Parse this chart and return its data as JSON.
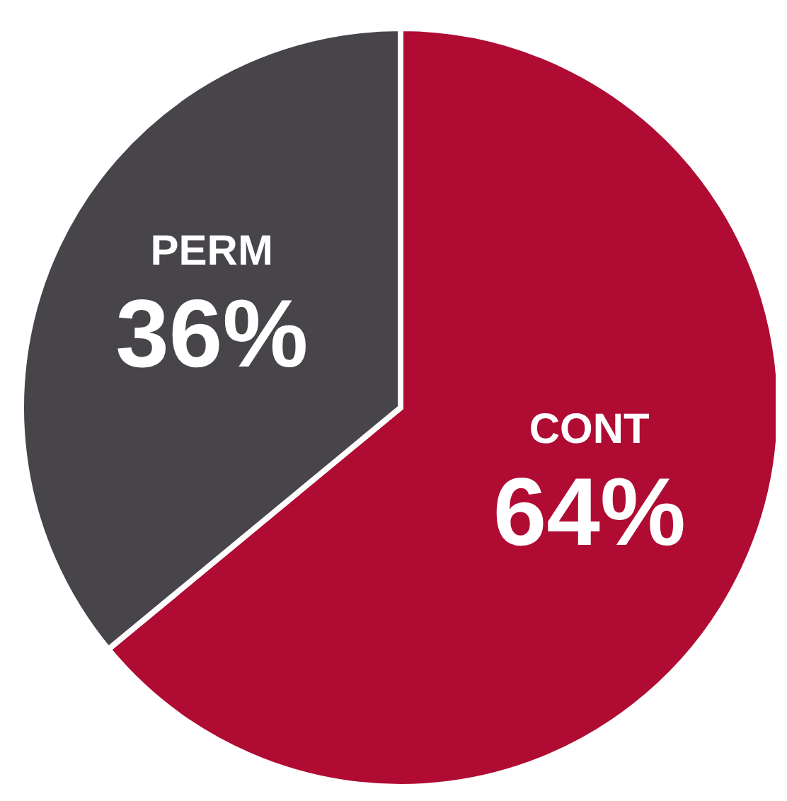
{
  "chart_data": {
    "type": "pie",
    "categories": [
      "CONT",
      "PERM"
    ],
    "values": [
      64,
      36
    ],
    "colors": [
      "#b00b33",
      "#47444a"
    ],
    "value_labels": [
      "64%",
      "36%"
    ],
    "legend": false
  }
}
